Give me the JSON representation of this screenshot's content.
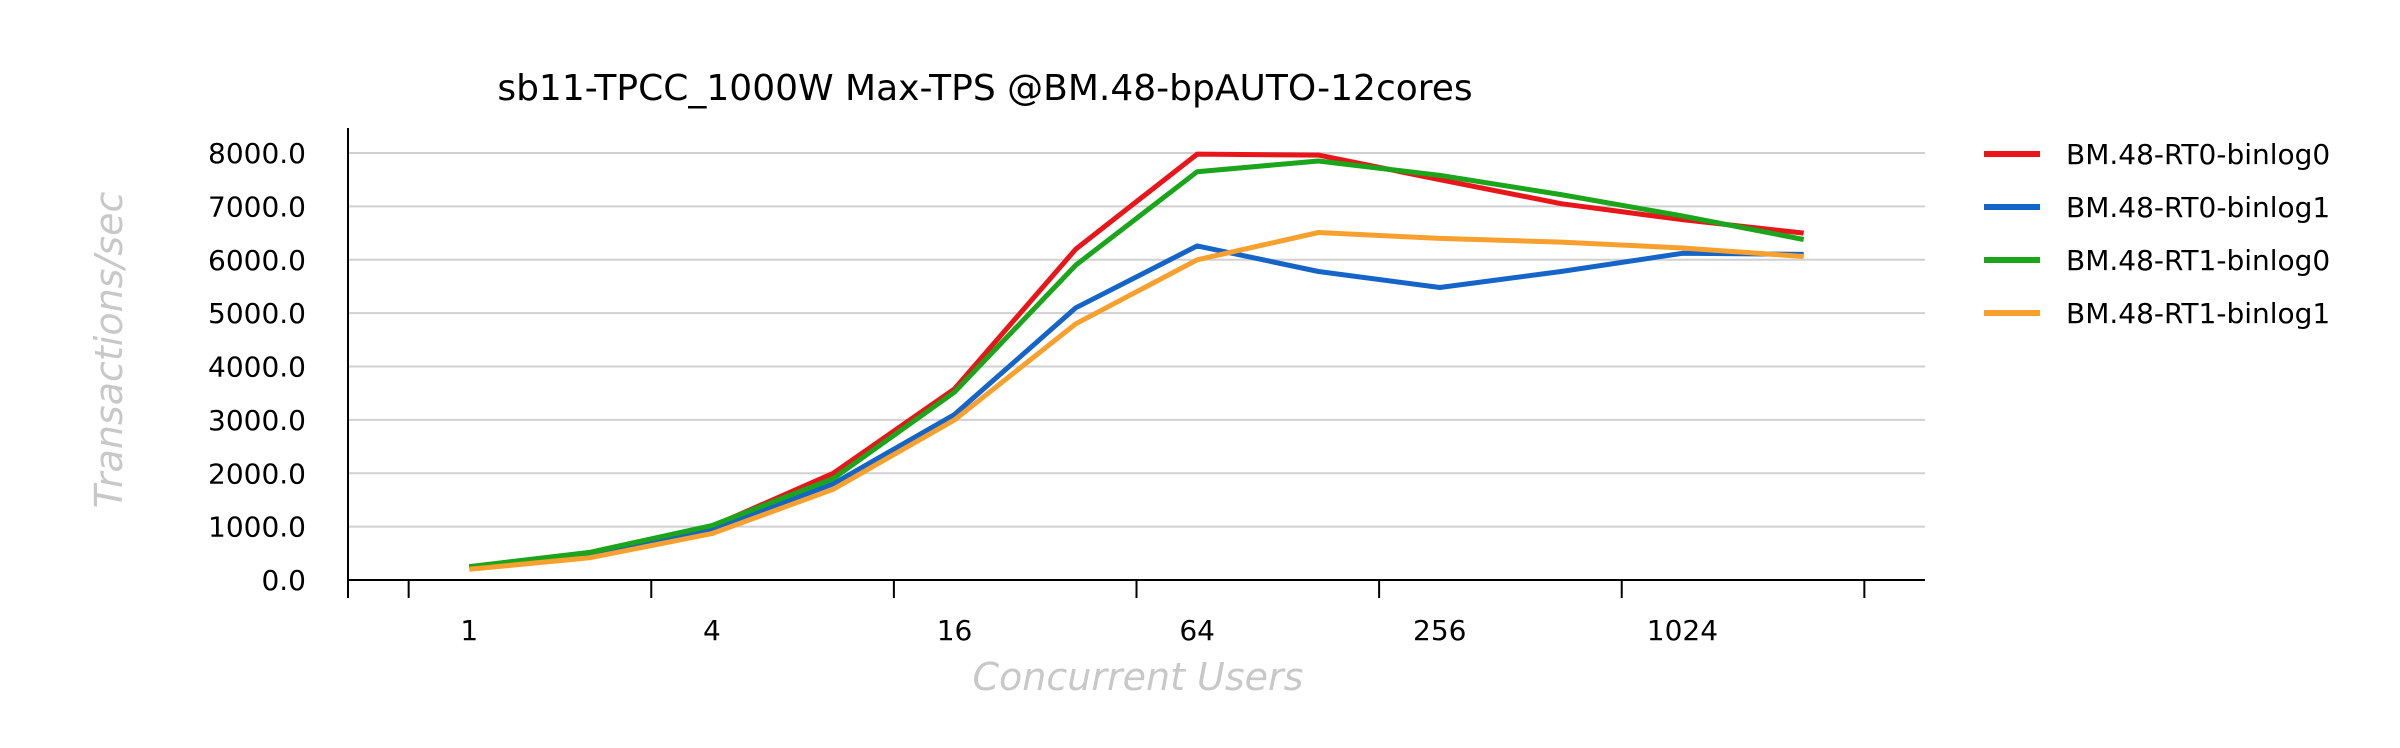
{
  "chart_data": {
    "type": "line",
    "title": "sb11-TPCC_1000W Max-TPS @BM.48-bpAUTO-12cores",
    "xlabel": "Concurrent Users",
    "ylabel": "Transactions/sec",
    "x": [
      1,
      2,
      4,
      8,
      16,
      32,
      64,
      128,
      256,
      512,
      1024,
      2048
    ],
    "x_tick_labels": [
      {
        "x": 1,
        "label": "1"
      },
      {
        "x": 4,
        "label": "4"
      },
      {
        "x": 16,
        "label": "16"
      },
      {
        "x": 64,
        "label": "64"
      },
      {
        "x": 256,
        "label": "256"
      },
      {
        "x": 1024,
        "label": "1024"
      }
    ],
    "xscale": "log2",
    "xlim": [
      0.5,
      4096
    ],
    "ylim": [
      0,
      8000
    ],
    "y_ticks": [
      "0.0",
      "1000.0",
      "2000.0",
      "3000.0",
      "4000.0",
      "5000.0",
      "6000.0",
      "7000.0",
      "8000.0"
    ],
    "grid": "horizontal",
    "legend_position": "right",
    "series": [
      {
        "name": "BM.48-RT0-binlog0",
        "color": "#e8161b",
        "values": [
          250,
          500,
          1000,
          2000,
          3580,
          6200,
          7980,
          7960,
          7500,
          7050,
          6750,
          6500
        ]
      },
      {
        "name": "BM.48-RT0-binlog1",
        "color": "#1565c8",
        "values": [
          230,
          470,
          950,
          1800,
          3100,
          5100,
          6260,
          5780,
          5480,
          5780,
          6120,
          6100
        ]
      },
      {
        "name": "BM.48-RT1-binlog0",
        "color": "#1aa51a",
        "values": [
          250,
          520,
          1020,
          1900,
          3520,
          5900,
          7650,
          7850,
          7580,
          7220,
          6820,
          6380
        ]
      },
      {
        "name": "BM.48-RT1-binlog1",
        "color": "#f7a02e",
        "values": [
          200,
          420,
          870,
          1700,
          3000,
          4800,
          6000,
          6510,
          6400,
          6330,
          6220,
          6060
        ]
      }
    ]
  }
}
